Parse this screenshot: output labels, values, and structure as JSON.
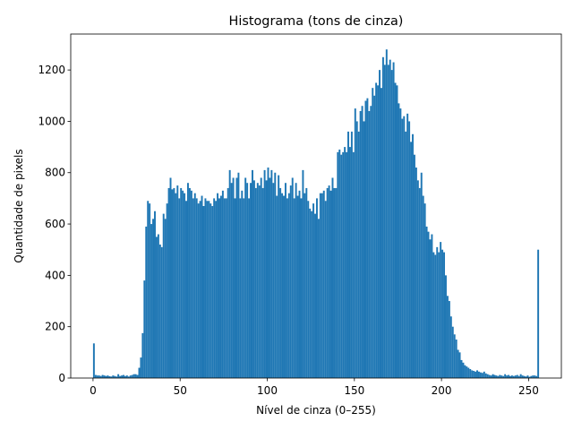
{
  "chart_data": {
    "type": "histogram",
    "title": "Histograma (tons de cinza)",
    "x_label": "Nível de cinza (0–255)",
    "y_label": "Quantidade de pixels",
    "color": "#1f77b4",
    "bins": [
      0,
      1,
      2,
      3,
      4,
      5,
      6,
      7,
      8,
      9,
      10,
      11,
      12,
      13,
      14,
      15,
      16,
      17,
      18,
      19,
      20,
      21,
      22,
      23,
      24,
      25,
      26,
      27,
      28,
      29,
      30,
      31,
      32,
      33,
      34,
      35,
      36,
      37,
      38,
      39,
      40,
      41,
      42,
      43,
      44,
      45,
      46,
      47,
      48,
      49,
      50,
      51,
      52,
      53,
      54,
      55,
      56,
      57,
      58,
      59,
      60,
      61,
      62,
      63,
      64,
      65,
      66,
      67,
      68,
      69,
      70,
      71,
      72,
      73,
      74,
      75,
      76,
      77,
      78,
      79,
      80,
      81,
      82,
      83,
      84,
      85,
      86,
      87,
      88,
      89,
      90,
      91,
      92,
      93,
      94,
      95,
      96,
      97,
      98,
      99,
      100,
      101,
      102,
      103,
      104,
      105,
      106,
      107,
      108,
      109,
      110,
      111,
      112,
      113,
      114,
      115,
      116,
      117,
      118,
      119,
      120,
      121,
      122,
      123,
      124,
      125,
      126,
      127,
      128,
      129,
      130,
      131,
      132,
      133,
      134,
      135,
      136,
      137,
      138,
      139,
      140,
      141,
      142,
      143,
      144,
      145,
      146,
      147,
      148,
      149,
      150,
      151,
      152,
      153,
      154,
      155,
      156,
      157,
      158,
      159,
      160,
      161,
      162,
      163,
      164,
      165,
      166,
      167,
      168,
      169,
      170,
      171,
      172,
      173,
      174,
      175,
      176,
      177,
      178,
      179,
      180,
      181,
      182,
      183,
      184,
      185,
      186,
      187,
      188,
      189,
      190,
      191,
      192,
      193,
      194,
      195,
      196,
      197,
      198,
      199,
      200,
      201,
      202,
      203,
      204,
      205,
      206,
      207,
      208,
      209,
      210,
      211,
      212,
      213,
      214,
      215,
      216,
      217,
      218,
      219,
      220,
      221,
      222,
      223,
      224,
      225,
      226,
      227,
      228,
      229,
      230,
      231,
      232,
      233,
      234,
      235,
      236,
      237,
      238,
      239,
      240,
      241,
      242,
      243,
      244,
      245,
      246,
      247,
      248,
      249,
      250,
      251,
      252,
      253,
      254,
      255,
      256
    ],
    "counts": [
      135,
      12,
      10,
      10,
      8,
      12,
      10,
      8,
      10,
      7,
      6,
      10,
      8,
      6,
      15,
      8,
      10,
      12,
      8,
      10,
      6,
      10,
      12,
      15,
      15,
      12,
      40,
      80,
      175,
      380,
      590,
      690,
      680,
      600,
      620,
      650,
      550,
      560,
      520,
      510,
      640,
      620,
      680,
      740,
      780,
      735,
      740,
      720,
      750,
      700,
      740,
      730,
      720,
      690,
      760,
      740,
      730,
      700,
      720,
      700,
      680,
      690,
      710,
      670,
      700,
      690,
      690,
      680,
      670,
      700,
      690,
      720,
      700,
      710,
      730,
      700,
      700,
      740,
      810,
      760,
      780,
      700,
      780,
      800,
      700,
      730,
      700,
      780,
      760,
      700,
      760,
      810,
      770,
      740,
      760,
      750,
      780,
      740,
      810,
      770,
      820,
      780,
      810,
      760,
      800,
      710,
      790,
      740,
      720,
      710,
      760,
      700,
      720,
      750,
      780,
      700,
      760,
      710,
      730,
      700,
      810,
      720,
      740,
      690,
      660,
      650,
      680,
      640,
      700,
      620,
      720,
      720,
      730,
      690,
      740,
      750,
      730,
      780,
      740,
      740,
      880,
      890,
      870,
      880,
      900,
      880,
      960,
      900,
      960,
      880,
      1050,
      1000,
      960,
      1040,
      1060,
      1000,
      1080,
      1090,
      1040,
      1060,
      1130,
      1100,
      1150,
      1140,
      1200,
      1130,
      1250,
      1220,
      1280,
      1220,
      1240,
      1200,
      1230,
      1150,
      1140,
      1070,
      1050,
      1010,
      1020,
      960,
      1030,
      1000,
      920,
      950,
      870,
      820,
      770,
      740,
      800,
      710,
      680,
      590,
      570,
      540,
      560,
      490,
      480,
      510,
      490,
      530,
      500,
      490,
      400,
      320,
      300,
      240,
      200,
      170,
      150,
      110,
      100,
      70,
      60,
      50,
      45,
      40,
      35,
      30,
      28,
      25,
      30,
      25,
      22,
      20,
      25,
      18,
      15,
      12,
      10,
      15,
      12,
      10,
      8,
      12,
      10,
      8,
      15,
      10,
      12,
      8,
      10,
      8,
      10,
      12,
      8,
      15,
      10,
      8,
      6,
      10,
      5,
      8,
      10,
      10,
      8,
      500
    ],
    "xlim": [
      -12.8,
      268.8
    ],
    "xticks": [
      0,
      50,
      100,
      150,
      200,
      250
    ],
    "ylim": [
      0,
      1340
    ],
    "yticks": [
      0,
      200,
      400,
      600,
      800,
      1000,
      1200
    ]
  }
}
